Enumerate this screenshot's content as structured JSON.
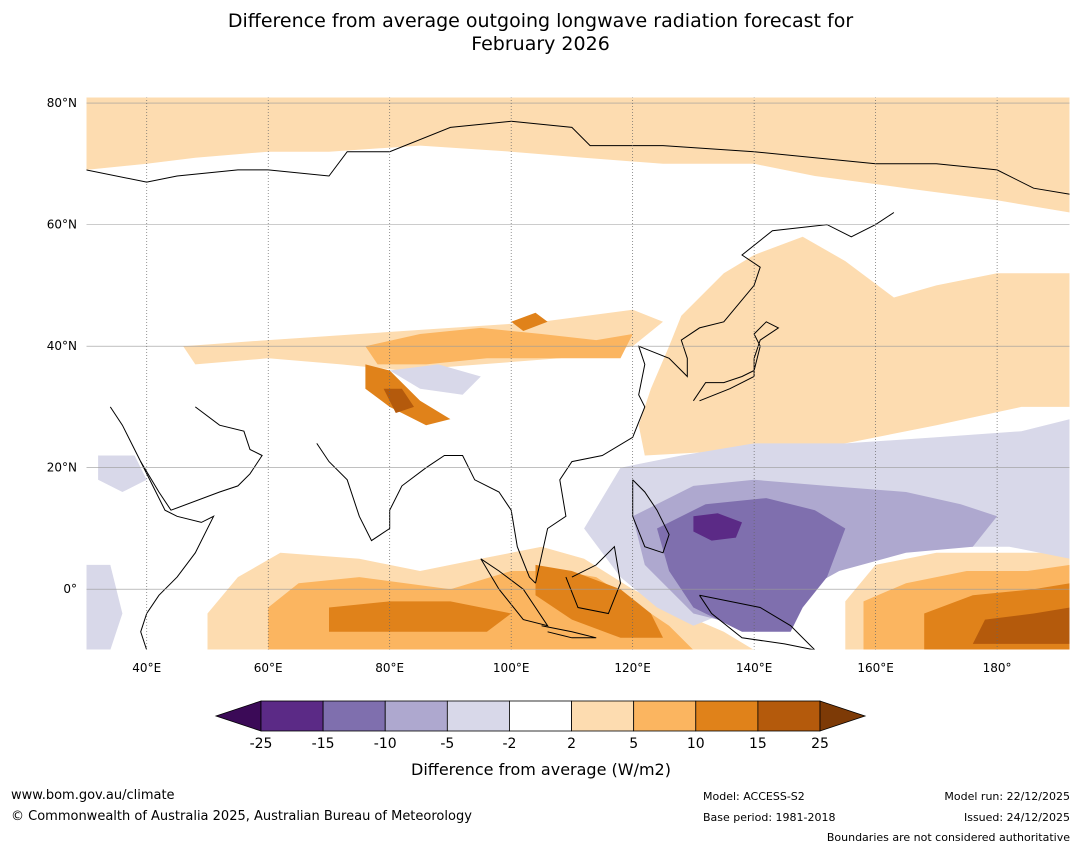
{
  "title_line1": "Difference from average outgoing longwave radiation forecast for",
  "title_line2": "February 2026",
  "chart_data": {
    "type": "heatmap",
    "map_projection": "equirectangular",
    "lon_range": [
      30,
      192
    ],
    "lat_range": [
      -10,
      81
    ],
    "lat_ticks": [
      {
        "value": 80,
        "label": "80°N"
      },
      {
        "value": 60,
        "label": "60°N"
      },
      {
        "value": 40,
        "label": "40°N"
      },
      {
        "value": 20,
        "label": "20°N"
      },
      {
        "value": 0,
        "label": "0°"
      }
    ],
    "lon_ticks": [
      {
        "value": 40,
        "label": "40°E"
      },
      {
        "value": 60,
        "label": "60°E"
      },
      {
        "value": 80,
        "label": "80°E"
      },
      {
        "value": 100,
        "label": "100°E"
      },
      {
        "value": 120,
        "label": "120°E"
      },
      {
        "value": 140,
        "label": "140°E"
      },
      {
        "value": 160,
        "label": "160°E"
      },
      {
        "value": 180,
        "label": "180°"
      }
    ],
    "colorbar": {
      "label": "Difference from average (W/m2)",
      "boundaries": [
        "-25",
        "-15",
        "-10",
        "-5",
        "-2",
        "2",
        "5",
        "10",
        "15",
        "25"
      ],
      "colors": [
        "#5b2a86",
        "#7f6fae",
        "#aea8cf",
        "#d8d8e9",
        "#ffffff",
        "#fddcb0",
        "#fbb560",
        "#e0821a",
        "#b45a0c"
      ],
      "under_color": "#3b0a57",
      "over_color": "#7d3a06"
    },
    "regions": [
      {
        "level": "2 to 5",
        "area": "Arctic coast and Siberia",
        "lon": [
          30,
          192
        ],
        "lat": [
          68,
          81
        ]
      },
      {
        "level": "2 to 5",
        "area": "Western Pacific and East China Sea",
        "lon": [
          122,
          192
        ],
        "lat": [
          22,
          56
        ]
      },
      {
        "level": "2 to 5",
        "area": "Central Asia band",
        "lon": [
          45,
          125
        ],
        "lat": [
          38,
          48
        ]
      },
      {
        "level": "5 to 10",
        "area": "Tibetan plateau and Mongolia",
        "lon": [
          75,
          120
        ],
        "lat": [
          35,
          46
        ]
      },
      {
        "level": "10 to 15",
        "area": "Himalaya arc",
        "lon": [
          75,
          90
        ],
        "lat": [
          28,
          38
        ]
      },
      {
        "level": "2 to 10",
        "area": "Equatorial Indian Ocean",
        "lon": [
          50,
          110
        ],
        "lat": [
          -10,
          8
        ]
      },
      {
        "level": "10 to 15",
        "area": "Southern Indian Ocean",
        "lon": [
          70,
          100
        ],
        "lat": [
          -7,
          -2
        ]
      },
      {
        "level": "10 to 15",
        "area": "Maritime Continent west",
        "lon": [
          100,
          125
        ],
        "lat": [
          -8,
          4
        ]
      },
      {
        "level": "-2 to -5",
        "area": "Tropical North Pacific",
        "lon": [
          112,
          192
        ],
        "lat": [
          5,
          25
        ]
      },
      {
        "level": "-5 to -10",
        "area": "Philippine Sea",
        "lon": [
          122,
          170
        ],
        "lat": [
          2,
          18
        ]
      },
      {
        "level": "-10 to -15",
        "area": "Western Pacific warm pool",
        "lon": [
          125,
          155
        ],
        "lat": [
          -7,
          14
        ]
      },
      {
        "level": "-15 to -25",
        "area": "East of Philippines",
        "lon": [
          130,
          138
        ],
        "lat": [
          8,
          12
        ]
      },
      {
        "level": "5 to 15",
        "area": "Equatorial Central Pacific",
        "lon": [
          156,
          192
        ],
        "lat": [
          -10,
          6
        ]
      }
    ]
  },
  "footer": {
    "website": "www.bom.gov.au/climate",
    "copyright": "© Commonwealth of Australia 2025, Australian Bureau of Meteorology",
    "model": "Model: ACCESS-S2",
    "base_period": "Base period: 1981-2018",
    "model_run": "Model run: 22/12/2025",
    "issued": "Issued: 24/12/2025",
    "disclaimer": "Boundaries are not considered authoritative"
  }
}
